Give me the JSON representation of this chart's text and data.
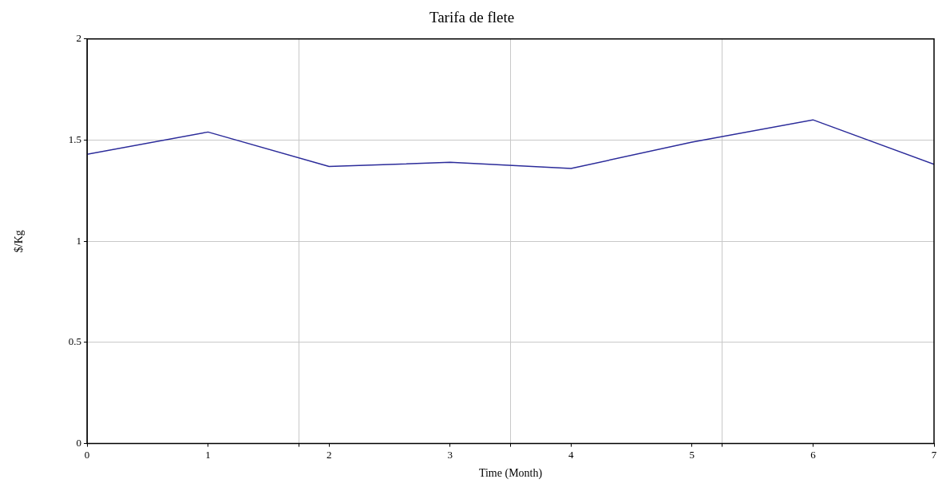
{
  "chart_data": {
    "type": "line",
    "title": "Tarifa de flete",
    "xlabel": "Time (Month)",
    "ylabel": "$/Kg",
    "x": [
      0,
      1,
      2,
      3,
      4,
      5,
      6,
      7
    ],
    "series": [
      {
        "color": "#2b2b9a",
        "values": [
          1.43,
          1.54,
          1.37,
          1.39,
          1.36,
          1.49,
          1.6,
          1.38
        ]
      }
    ],
    "xlim": [
      0,
      7
    ],
    "xticks": [
      0,
      1,
      {
        "value": 1.75,
        "label": null
      },
      2,
      3,
      {
        "value": 3.5,
        "label": null
      },
      4,
      5,
      {
        "value": 5.25,
        "label": null
      },
      6,
      7
    ],
    "ylim": [
      0,
      2
    ],
    "yticks": [
      0,
      0.5,
      1,
      1.5,
      2
    ],
    "grid": true,
    "legend": false,
    "marker": "none",
    "line_style": "solid"
  }
}
